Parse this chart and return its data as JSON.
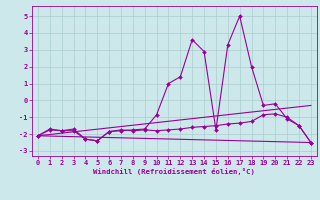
{
  "xlabel": "Windchill (Refroidissement éolien,°C)",
  "ylabel": "",
  "bg_color": "#cce8ea",
  "line_color": "#990099",
  "grid_color": "#aacccc",
  "x_values": [
    0,
    1,
    2,
    3,
    4,
    5,
    6,
    7,
    8,
    9,
    10,
    11,
    12,
    13,
    14,
    15,
    16,
    17,
    18,
    19,
    20,
    21,
    22,
    23
  ],
  "series1": [
    -2.1,
    -1.7,
    -1.8,
    -1.7,
    -2.3,
    -2.4,
    -1.85,
    -1.8,
    -1.75,
    -1.7,
    -0.85,
    1.0,
    1.4,
    3.6,
    2.9,
    -1.75,
    3.3,
    5.0,
    2.0,
    -0.3,
    -0.2,
    -1.1,
    -1.5,
    -2.5
  ],
  "series2": [
    -2.1,
    -1.75,
    -1.8,
    -1.8,
    -2.3,
    -2.4,
    -1.85,
    -1.75,
    -1.8,
    -1.75,
    -1.8,
    -1.75,
    -1.7,
    -1.6,
    -1.55,
    -1.5,
    -1.4,
    -1.35,
    -1.25,
    -0.85,
    -0.8,
    -1.0,
    -1.5,
    -2.5
  ],
  "series3_x": [
    0,
    23
  ],
  "series3_y": [
    -2.1,
    -2.5
  ],
  "series4_x": [
    0,
    23
  ],
  "series4_y": [
    -2.1,
    -0.3
  ],
  "xlim": [
    -0.5,
    23.5
  ],
  "ylim": [
    -3.3,
    5.6
  ],
  "yticks": [
    -3,
    -2,
    -1,
    0,
    1,
    2,
    3,
    4,
    5
  ],
  "xticks": [
    0,
    1,
    2,
    3,
    4,
    5,
    6,
    7,
    8,
    9,
    10,
    11,
    12,
    13,
    14,
    15,
    16,
    17,
    18,
    19,
    20,
    21,
    22,
    23
  ],
  "tick_fontsize": 5.0,
  "xlabel_fontsize": 5.2,
  "marker_size": 2.0,
  "line_width": 0.8
}
